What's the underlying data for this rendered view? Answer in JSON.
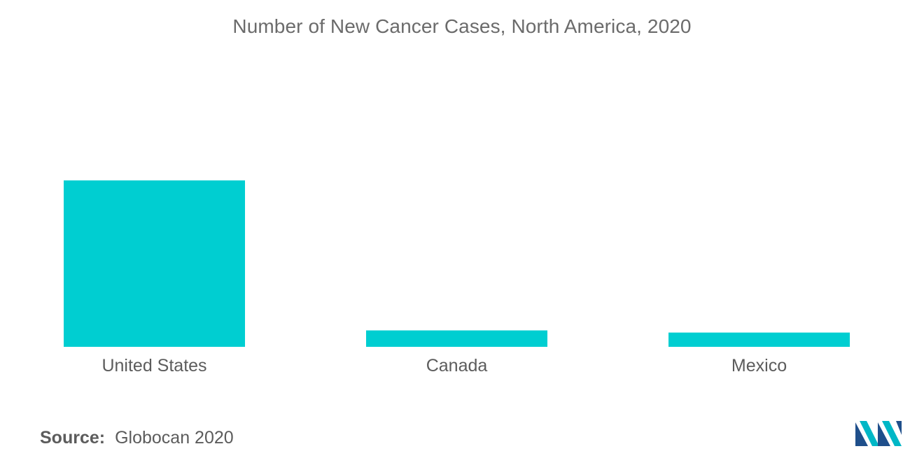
{
  "chart_data": {
    "type": "bar",
    "title": "Number of New Cancer Cases, North America, 2020",
    "categories": [
      "United States",
      "Canada",
      "Mexico"
    ],
    "values": [
      2281658,
      225077,
      195499
    ],
    "color": "#00ced1",
    "grid": false,
    "legend": "none"
  },
  "source": {
    "label": "Source:",
    "text": "Globocan 2020"
  },
  "logo": {
    "icon": "mordor-intelligence-logo-icon",
    "colors": [
      "#1f4f8b",
      "#00b7c6"
    ]
  }
}
